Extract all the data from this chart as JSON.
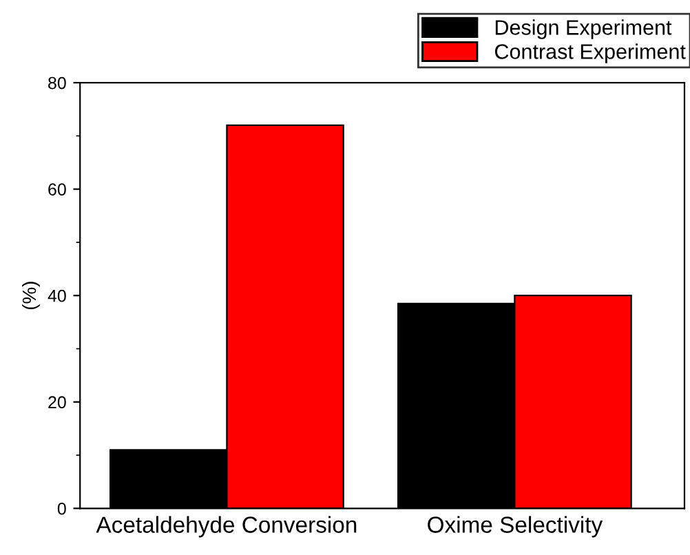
{
  "chart_data": {
    "type": "bar",
    "ylabel": "(%)",
    "categories": [
      "Acetaldehyde Conversion",
      "Oxime Selectivity"
    ],
    "series": [
      {
        "name": "Design Experiment",
        "color": "#000000",
        "values": [
          11,
          38.5
        ]
      },
      {
        "name": "Contrast Experiment",
        "color": "#ff0000",
        "values": [
          72,
          40
        ]
      }
    ],
    "ylim": [
      0,
      80
    ],
    "yticks": [
      0,
      20,
      40,
      60,
      80
    ],
    "grid": false,
    "legend": "top right"
  }
}
